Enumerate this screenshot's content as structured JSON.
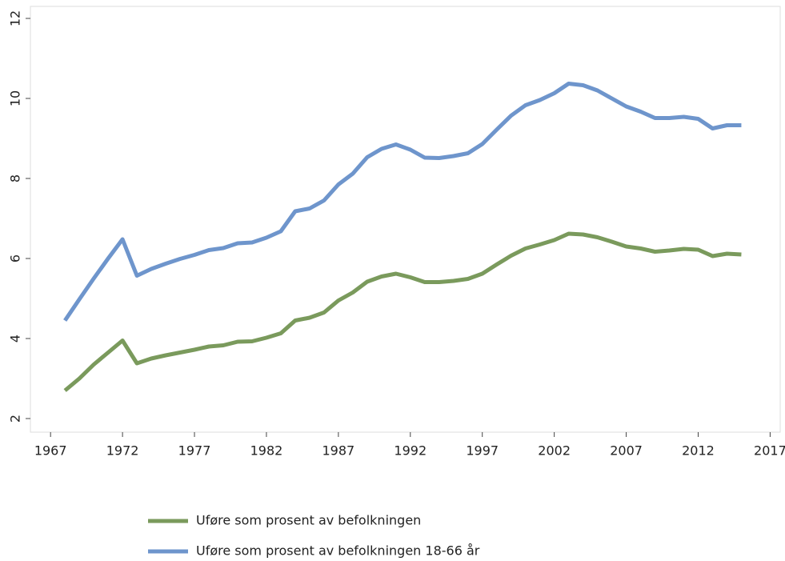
{
  "chart_data": {
    "type": "line",
    "x": [
      1968,
      1969,
      1970,
      1971,
      1972,
      1973,
      1974,
      1975,
      1976,
      1977,
      1978,
      1979,
      1980,
      1981,
      1982,
      1983,
      1984,
      1985,
      1986,
      1987,
      1988,
      1989,
      1990,
      1991,
      1992,
      1993,
      1994,
      1995,
      1996,
      1997,
      1998,
      1999,
      2000,
      2001,
      2002,
      2003,
      2004,
      2005,
      2006,
      2007,
      2008,
      2009,
      2010,
      2011,
      2012,
      2013,
      2014,
      2015
    ],
    "series": [
      {
        "name": "Uføre som prosent av befolkningen",
        "color": "#7a9a5c",
        "values": [
          2.7,
          3.0,
          3.35,
          3.65,
          3.95,
          3.38,
          3.5,
          3.58,
          3.65,
          3.72,
          3.8,
          3.83,
          3.92,
          3.93,
          4.02,
          4.13,
          4.45,
          4.52,
          4.65,
          4.95,
          5.15,
          5.42,
          5.55,
          5.62,
          5.53,
          5.41,
          5.41,
          5.44,
          5.49,
          5.62,
          5.85,
          6.07,
          6.25,
          6.35,
          6.46,
          6.62,
          6.6,
          6.53,
          6.42,
          6.3,
          6.25,
          6.17,
          6.2,
          6.24,
          6.22,
          6.06,
          6.12,
          6.1
        ]
      },
      {
        "name": "Uføre som prosent av befolkningen 18-66 år",
        "color": "#6e95cc",
        "values": [
          4.45,
          4.98,
          5.5,
          6.0,
          6.48,
          5.57,
          5.74,
          5.87,
          5.99,
          6.09,
          6.21,
          6.26,
          6.38,
          6.4,
          6.52,
          6.68,
          7.18,
          7.25,
          7.45,
          7.85,
          8.12,
          8.53,
          8.74,
          8.85,
          8.72,
          8.52,
          8.51,
          8.56,
          8.63,
          8.86,
          9.22,
          9.57,
          9.83,
          9.96,
          10.13,
          10.37,
          10.33,
          10.2,
          10.0,
          9.8,
          9.67,
          9.51,
          9.51,
          9.54,
          9.49,
          9.25,
          9.33,
          9.33
        ]
      }
    ],
    "xlim": [
      1965.6,
      2017.7
    ],
    "xticks": [
      1967,
      1972,
      1977,
      1982,
      1987,
      1992,
      1997,
      2002,
      2007,
      2012,
      2017
    ],
    "ylim": [
      1.66,
      12.3
    ],
    "yticks": [
      2,
      4,
      6,
      8,
      10,
      12
    ]
  }
}
